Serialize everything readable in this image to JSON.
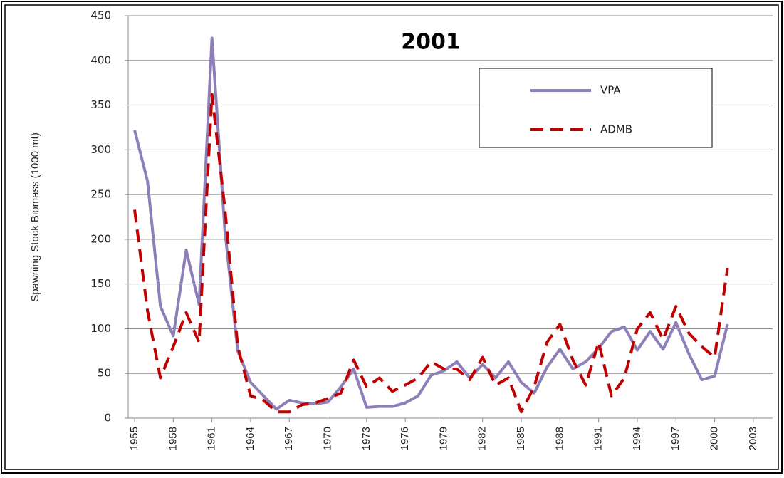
{
  "chart_data": {
    "type": "line",
    "title": "2001",
    "y_label": "Spawning Stock Biomass (1000 mt)",
    "x": [
      1955,
      1956,
      1957,
      1958,
      1959,
      1960,
      1961,
      1962,
      1963,
      1964,
      1965,
      1966,
      1967,
      1968,
      1969,
      1970,
      1971,
      1972,
      1973,
      1974,
      1975,
      1976,
      1977,
      1978,
      1979,
      1980,
      1981,
      1982,
      1983,
      1984,
      1985,
      1986,
      1987,
      1988,
      1989,
      1990,
      1991,
      1992,
      1993,
      1994,
      1995,
      1996,
      1997,
      1998,
      1999,
      2000,
      2001
    ],
    "series": [
      {
        "name": "VPA",
        "color": "#8f7fb8",
        "dash": false,
        "values": [
          322,
          265,
          125,
          92,
          188,
          127,
          425,
          210,
          75,
          40,
          25,
          10,
          20,
          17,
          16,
          18,
          35,
          55,
          12,
          13,
          13,
          17,
          25,
          48,
          53,
          63,
          45,
          60,
          45,
          63,
          40,
          28,
          57,
          77,
          55,
          63,
          78,
          97,
          102,
          76,
          97,
          77,
          107,
          72,
          43,
          47,
          105
        ]
      },
      {
        "name": "ADMB",
        "color": "#c00000",
        "dash": true,
        "values": [
          233,
          120,
          45,
          80,
          118,
          85,
          362,
          235,
          80,
          25,
          20,
          7,
          7,
          15,
          17,
          22,
          28,
          65,
          35,
          45,
          30,
          37,
          45,
          63,
          55,
          55,
          43,
          68,
          37,
          45,
          7,
          35,
          85,
          105,
          65,
          37,
          85,
          25,
          45,
          100,
          118,
          88,
          125,
          95,
          80,
          68,
          168
        ]
      }
    ],
    "xlim": [
      1954.5,
      2004.5
    ],
    "xticks": [
      1955,
      1958,
      1961,
      1964,
      1967,
      1970,
      1973,
      1976,
      1979,
      1982,
      1985,
      1988,
      1991,
      1994,
      1997,
      2000,
      2003
    ],
    "ylim": [
      0,
      450
    ],
    "yticks": [
      0,
      50,
      100,
      150,
      200,
      250,
      300,
      350,
      400,
      450
    ],
    "grid": true,
    "legend": "upper right"
  }
}
